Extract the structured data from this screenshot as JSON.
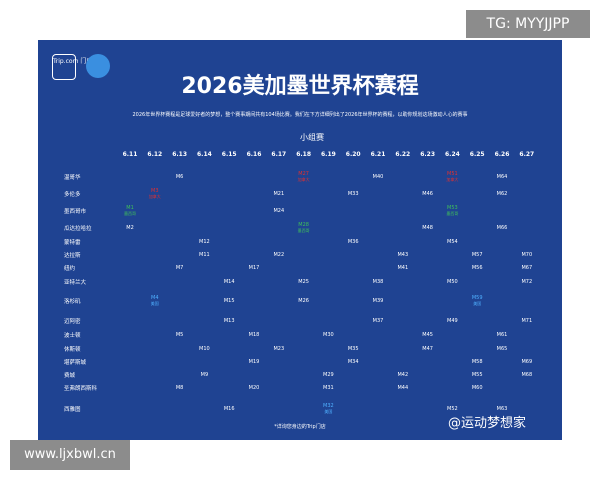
{
  "corner_tag": "TG: MYYJJPP",
  "site": "www.ljxbwl.cn",
  "watermark": "@运动梦想家",
  "logo": "Trip.com 门店",
  "header": {
    "title": "2026美加墨世界杯赛程",
    "subtitle": "2026年世界杯赛程是足球爱好者的梦想，整个赛事期间共有104场比赛。我们在下方详细列出了2026年世界杯的赛程，以助你规划这场激动人心的赛事",
    "stage": "小组赛"
  },
  "footnote": "*详询您身边的Trip门店",
  "table": {
    "dates": [
      "6.11",
      "6.12",
      "6.13",
      "6.14",
      "6.15",
      "6.16",
      "6.17",
      "6.18",
      "6.19",
      "6.20",
      "6.21",
      "6.22",
      "6.23",
      "6.24",
      "6.25",
      "6.26",
      "6.27"
    ],
    "rows": [
      {
        "city": "温哥华",
        "cells": [
          null,
          null,
          "M6",
          null,
          null,
          null,
          null,
          {
            "match": "M27",
            "host": "加拿大",
            "color": "#e03030"
          },
          null,
          null,
          "M40",
          null,
          null,
          {
            "match": "M51",
            "host": "加拿大",
            "color": "#e03030"
          },
          null,
          "M64",
          null
        ]
      },
      {
        "city": "多伦多",
        "cells": [
          null,
          {
            "match": "M3",
            "host": "加拿大",
            "color": "#e03030"
          },
          null,
          null,
          null,
          null,
          "M21",
          null,
          null,
          "M33",
          null,
          null,
          "M46",
          null,
          null,
          "M62",
          null
        ]
      },
      {
        "city": "墨西哥市",
        "cells": [
          {
            "match": "M1",
            "host": "墨西哥",
            "color": "#3fbf5a"
          },
          null,
          null,
          null,
          null,
          null,
          "M24",
          null,
          null,
          null,
          null,
          null,
          null,
          {
            "match": "M53",
            "host": "墨西哥",
            "color": "#3fbf5a"
          },
          null,
          null,
          null
        ]
      },
      {
        "city": "瓜达拉哈拉",
        "cells": [
          "M2",
          null,
          null,
          null,
          null,
          null,
          null,
          {
            "match": "M28",
            "host": "墨西哥",
            "color": "#3fbf5a"
          },
          null,
          null,
          null,
          null,
          "M48",
          null,
          null,
          "M66",
          null
        ]
      },
      {
        "city": "蒙特雷",
        "cells": [
          null,
          null,
          null,
          "M12",
          null,
          null,
          null,
          null,
          null,
          "M36",
          null,
          null,
          null,
          "M54",
          null,
          null,
          null
        ]
      },
      {
        "city": "达拉斯",
        "cells": [
          null,
          null,
          null,
          "M11",
          null,
          null,
          "M22",
          null,
          null,
          null,
          null,
          "M43",
          null,
          null,
          "M57",
          null,
          "M70"
        ]
      },
      {
        "city": "纽约",
        "cells": [
          null,
          null,
          "M7",
          null,
          null,
          "M17",
          null,
          null,
          null,
          null,
          null,
          "M41",
          null,
          null,
          "M56",
          null,
          "M67"
        ]
      },
      {
        "city": "亚特兰大",
        "cells": [
          null,
          null,
          null,
          null,
          "M14",
          null,
          null,
          "M25",
          null,
          null,
          "M38",
          null,
          null,
          "M50",
          null,
          null,
          "M72"
        ]
      },
      {
        "city": "洛杉矶",
        "cells": [
          null,
          {
            "match": "M4",
            "host": "美国",
            "color": "#4fb0ff"
          },
          null,
          null,
          "M15",
          null,
          null,
          "M26",
          null,
          null,
          "M39",
          null,
          null,
          null,
          {
            "match": "M59",
            "host": "美国",
            "color": "#4fb0ff"
          },
          null,
          null
        ]
      },
      {
        "city": "迈阿密",
        "cells": [
          null,
          null,
          null,
          null,
          "M13",
          null,
          null,
          null,
          null,
          null,
          "M37",
          null,
          null,
          "M49",
          null,
          null,
          "M71"
        ]
      },
      {
        "city": "波士顿",
        "cells": [
          null,
          null,
          "M5",
          null,
          null,
          "M18",
          null,
          null,
          "M30",
          null,
          null,
          null,
          "M45",
          null,
          null,
          "M61",
          null
        ]
      },
      {
        "city": "休斯顿",
        "cells": [
          null,
          null,
          null,
          "M10",
          null,
          null,
          "M23",
          null,
          null,
          "M35",
          null,
          null,
          "M47",
          null,
          null,
          "M65",
          null
        ]
      },
      {
        "city": "堪萨斯城",
        "cells": [
          null,
          null,
          null,
          null,
          null,
          "M19",
          null,
          null,
          null,
          "M34",
          null,
          null,
          null,
          null,
          "M58",
          null,
          "M69"
        ]
      },
      {
        "city": "费城",
        "cells": [
          null,
          null,
          null,
          "M9",
          null,
          null,
          null,
          null,
          "M29",
          null,
          null,
          "M42",
          null,
          null,
          "M55",
          null,
          "M68"
        ]
      },
      {
        "city": "圣弗朗西斯科",
        "cells": [
          null,
          null,
          "M8",
          null,
          null,
          "M20",
          null,
          null,
          "M31",
          null,
          null,
          "M44",
          null,
          null,
          "M60",
          null,
          null
        ]
      },
      {
        "city": "西雅图",
        "cells": [
          null,
          null,
          null,
          null,
          "M16",
          null,
          null,
          null,
          {
            "match": "M32",
            "host": "美国",
            "color": "#4fb0ff"
          },
          null,
          null,
          null,
          null,
          "M52",
          null,
          "M63",
          null
        ]
      }
    ]
  }
}
